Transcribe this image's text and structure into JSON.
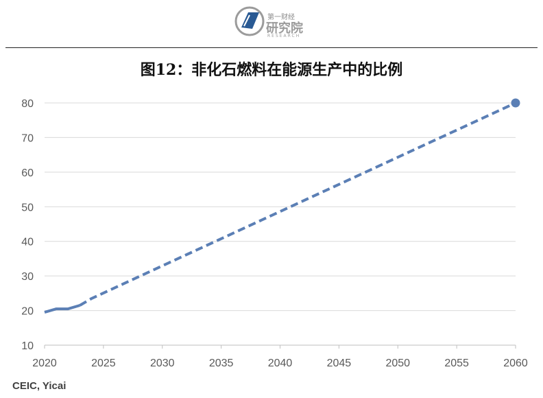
{
  "header": {
    "logo_top": "第一财经",
    "logo_main": "研究院",
    "logo_en": "RESEARCH"
  },
  "title": "图12：非化石燃料在能源生产中的比例",
  "source": "CEIC, Yicai",
  "colors": {
    "line": "#5b7fb5",
    "grid": "#d9d9d9",
    "axis": "#bfbfbf",
    "tick_text": "#595959"
  },
  "chart_data": {
    "type": "line",
    "title": "图12：非化石燃料在能源生产中的比例",
    "xlabel": "",
    "ylabel": "",
    "xlim": [
      2020,
      2060
    ],
    "ylim": [
      10,
      80
    ],
    "x_ticks": [
      2020,
      2025,
      2030,
      2035,
      2040,
      2045,
      2050,
      2055,
      2060
    ],
    "y_ticks": [
      10,
      20,
      30,
      40,
      50,
      60,
      70,
      80
    ],
    "grid": true,
    "series": [
      {
        "style": "solid",
        "points": [
          [
            2020,
            19.5
          ],
          [
            2021,
            20.5
          ],
          [
            2022,
            20.5
          ],
          [
            2023,
            21.5
          ]
        ]
      },
      {
        "style": "dashed",
        "points": [
          [
            2023,
            21.5
          ],
          [
            2024,
            23.5
          ],
          [
            2060,
            80
          ]
        ]
      }
    ],
    "marker": {
      "x": 2060,
      "y": 80
    }
  }
}
